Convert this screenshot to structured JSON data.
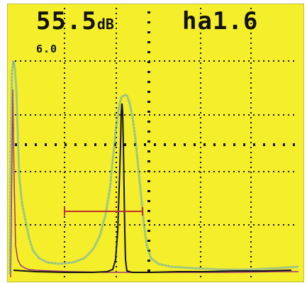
{
  "readouts": {
    "gain_value": "55.5",
    "gain_unit": "dB",
    "mode_value": "ha1.6",
    "range_value": "6.0"
  },
  "colors": {
    "screen_background": "#f4ef2a",
    "grid": "#111111",
    "blue_trace": "#4f9fd8",
    "black_trace": "#111111",
    "purple_trace": "#a0307a",
    "gate": "#c0302a"
  },
  "icons": {
    "gate_marker": "gate-bar-icon"
  }
}
